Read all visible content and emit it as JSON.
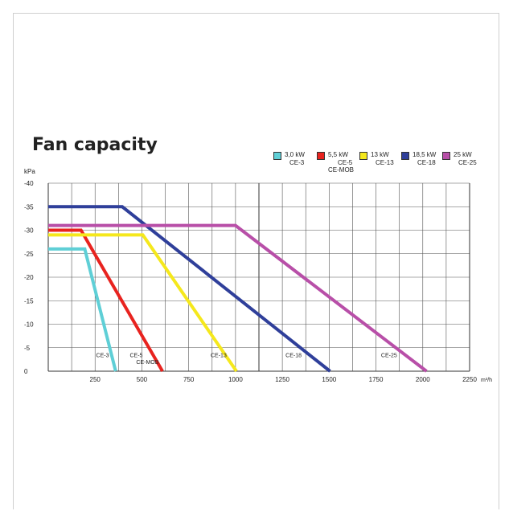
{
  "title": "Fan capacity",
  "legend": [
    {
      "power": "3,0 kW",
      "models": "CE-3",
      "color": "#5fcfd6"
    },
    {
      "power": "5,5 kW",
      "models": "CE-5\nCE-MOB",
      "color": "#e8231f"
    },
    {
      "power": "13 kW",
      "models": "CE-13",
      "color": "#f5e81c"
    },
    {
      "power": "18,5 kW",
      "models": "CE-18",
      "color": "#2f3f9a"
    },
    {
      "power": "25 kW",
      "models": "CE-25",
      "color": "#b84fa8"
    }
  ],
  "chart_data": {
    "type": "line",
    "ylabel": "kPa",
    "xlabel": "m³/h",
    "xlim": [
      0,
      2250
    ],
    "ylim": [
      -40,
      0
    ],
    "x_ticks": [
      250,
      500,
      750,
      1000,
      1250,
      1500,
      1750,
      2000,
      2250
    ],
    "y_ticks": [
      -40,
      -35,
      -30,
      -25,
      -20,
      -15,
      -10,
      -5,
      0
    ],
    "grid": true,
    "series": [
      {
        "name": "3,0 kW CE-3",
        "color": "#5fcfd6",
        "points": [
          [
            0,
            -26
          ],
          [
            195,
            -26
          ],
          [
            360,
            0
          ]
        ]
      },
      {
        "name": "5,5 kW CE-5 CE-MOB",
        "color": "#e8231f",
        "points": [
          [
            0,
            -30
          ],
          [
            175,
            -30
          ],
          [
            610,
            0
          ]
        ]
      },
      {
        "name": "13 kW CE-13",
        "color": "#f5e81c",
        "points": [
          [
            0,
            -29
          ],
          [
            505,
            -29
          ],
          [
            1005,
            0
          ]
        ]
      },
      {
        "name": "18,5 kW CE-18",
        "color": "#2f3f9a",
        "points": [
          [
            0,
            -35
          ],
          [
            395,
            -35
          ],
          [
            1505,
            0
          ]
        ]
      },
      {
        "name": "25 kW CE-25",
        "color": "#b84fa8",
        "points": [
          [
            0,
            -31
          ],
          [
            1000,
            -31
          ],
          [
            2020,
            0
          ]
        ]
      }
    ],
    "annotations": [
      {
        "text": "CE-3",
        "x": 290,
        "y": -3
      },
      {
        "text": "CE-5",
        "x": 470,
        "y": -3
      },
      {
        "text": "CE-MOB",
        "x": 530,
        "y": -1.5
      },
      {
        "text": "CE-13",
        "x": 910,
        "y": -3
      },
      {
        "text": "CE-18",
        "x": 1310,
        "y": -3
      },
      {
        "text": "CE-25",
        "x": 1820,
        "y": -3
      }
    ]
  }
}
